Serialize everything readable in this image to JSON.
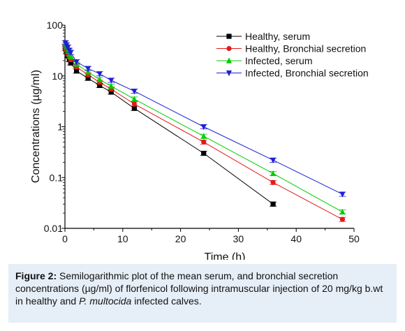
{
  "chart_data": {
    "type": "scatter",
    "xlabel": "Time (h)",
    "ylabel": "Concentrations (µg/ml)",
    "yscale": "log",
    "xlim": [
      0,
      50
    ],
    "ylim": [
      0.01,
      100
    ],
    "xticks": [
      0,
      10,
      20,
      30,
      40,
      50
    ],
    "yticks": [
      0.01,
      0.1,
      1,
      10,
      100
    ],
    "ytick_labels": [
      "0.01",
      "0.1",
      "1",
      "10",
      "100"
    ],
    "legend_position": "top-right",
    "series": [
      {
        "name": "Healthy, serum",
        "color": "#000000",
        "marker": "square",
        "x": [
          0.083,
          0.25,
          0.5,
          0.75,
          1,
          2,
          4,
          6,
          8,
          12,
          24,
          36
        ],
        "y": [
          35,
          30,
          25,
          21,
          18,
          12.5,
          9,
          6.5,
          4.8,
          2.3,
          0.3,
          0.03
        ]
      },
      {
        "name": "Healthy, Bronchial secretion",
        "color": "#e31a1c",
        "marker": "circle",
        "x": [
          0.083,
          0.25,
          0.5,
          0.75,
          1,
          2,
          4,
          6,
          8,
          12,
          24,
          36,
          48
        ],
        "y": [
          38,
          33,
          28,
          24,
          21,
          15,
          10.5,
          7.5,
          5.5,
          2.8,
          0.5,
          0.08,
          0.015
        ]
      },
      {
        "name": "Infected, serum",
        "color": "#00cc00",
        "marker": "triangle-up",
        "x": [
          0.083,
          0.25,
          0.5,
          0.75,
          1,
          2,
          4,
          6,
          8,
          12,
          24,
          36,
          48
        ],
        "y": [
          40,
          36,
          31,
          27,
          24,
          17,
          12,
          8.5,
          6.3,
          3.5,
          0.65,
          0.12,
          0.021
        ]
      },
      {
        "name": "Infected, Bronchial secretion",
        "color": "#1f1fd6",
        "marker": "triangle-down",
        "x": [
          0.083,
          0.25,
          0.5,
          0.75,
          1,
          2,
          4,
          6,
          8,
          12,
          24,
          36,
          48
        ],
        "y": [
          45,
          41,
          37,
          32,
          29,
          19,
          14,
          11,
          8.2,
          5,
          1,
          0.22,
          0.047
        ]
      }
    ]
  },
  "caption": {
    "label": "Figure 2:",
    "text_1": " Semilogarithmic plot of the mean serum, and bronchial secretion concentrations (µg/ml) of florfenicol following intramuscular injection of 20 mg/kg b.wt in healthy and ",
    "italic": "P. multocida",
    "text_2": " infected calves."
  }
}
